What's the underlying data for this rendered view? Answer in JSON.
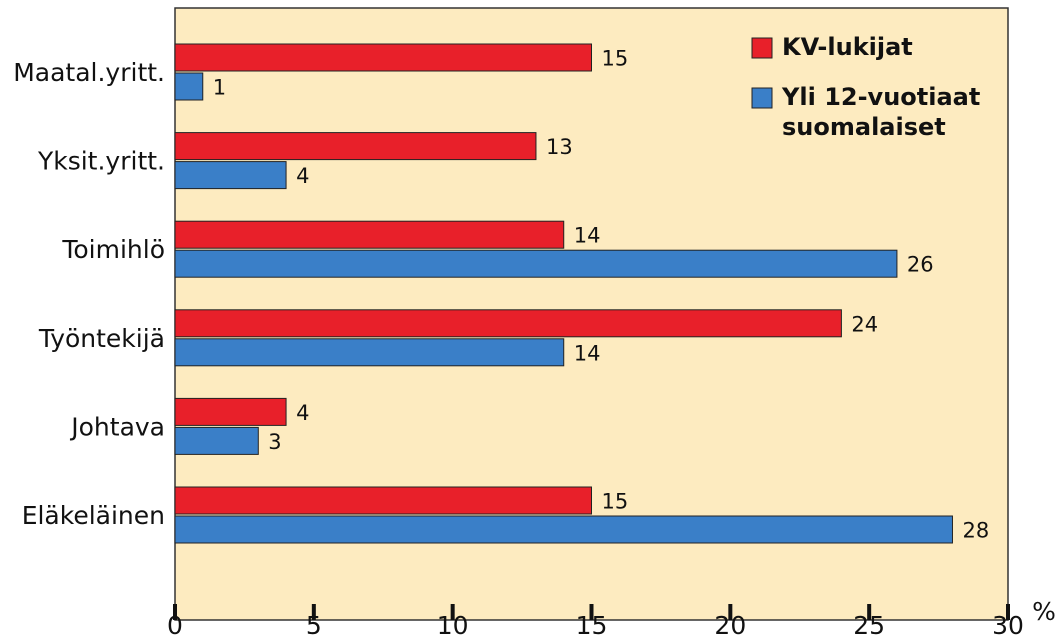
{
  "chart_data": {
    "type": "barh",
    "categories": [
      "Maatal.yritt.",
      "Yksit.yritt.",
      "Toimihlö",
      "Työntekijä",
      "Johtava",
      "Eläkeläinen"
    ],
    "series": [
      {
        "name": "KV-lukijat",
        "color": "#e8202a",
        "values": [
          15,
          13,
          14,
          24,
          4,
          15
        ]
      },
      {
        "name": "Yli 12-vuotiaat suomalaiset",
        "color": "#3a7fc8",
        "values": [
          1,
          4,
          26,
          14,
          3,
          28
        ]
      }
    ],
    "xlim": [
      0,
      30
    ],
    "xticks": [
      0,
      5,
      10,
      15,
      20,
      25,
      30
    ],
    "x_unit": "%",
    "legend": "upper right",
    "background": "#fdebc0"
  }
}
